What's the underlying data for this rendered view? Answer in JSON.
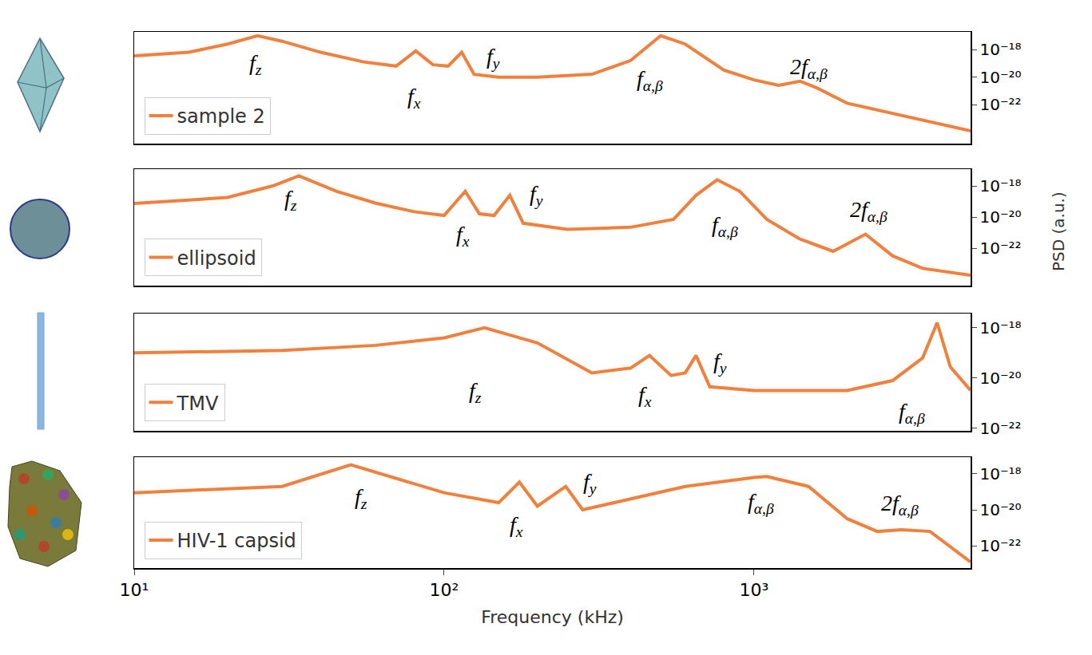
{
  "chart_data": [
    {
      "type": "line",
      "log": true,
      "grid": false,
      "legend": "lower left",
      "tick_labels": "y",
      "x": [
        10,
        15,
        20,
        25,
        30,
        40,
        55,
        70,
        81,
        92,
        103,
        114,
        125,
        150,
        200,
        300,
        400,
        500,
        600,
        700,
        800,
        1000,
        1200,
        1410,
        1600,
        2000,
        3000,
        4000,
        5000
      ],
      "series": [
        {
          "name": "sample 2",
          "color": "#f0803c",
          "values": [
            3.5e-19,
            6.3e-19,
            2.5e-18,
            1e-17,
            4e-18,
            6.3e-19,
            1.26e-19,
            6.3e-20,
            7.9e-19,
            7.9e-20,
            6.3e-20,
            6.3e-19,
            1.6e-20,
            1e-20,
            1e-20,
            1.6e-20,
            1.6e-19,
            1e-17,
            2.5e-18,
            2.5e-19,
            3.2e-20,
            6.3e-21,
            2.5e-21,
            5e-21,
            1.6e-21,
            1.26e-22,
            1.6e-23,
            4e-24,
            1.26e-24
          ]
        }
      ],
      "xlim": [
        10,
        5000
      ],
      "xticks": [
        {
          "value": 10,
          "label": "10¹"
        },
        {
          "value": 100,
          "label": "10²"
        },
        {
          "value": 1000,
          "label": "10³"
        }
      ],
      "ylim": [
        1.5e-25,
        1.9e-17
      ],
      "yticks": [
        {
          "value": 1e-18,
          "label": "10⁻¹⁸"
        },
        {
          "value": 1e-20,
          "label": "10⁻²⁰"
        },
        {
          "value": 1e-22,
          "label": "10⁻²²"
        }
      ],
      "annotations": [
        {
          "text": "f",
          "sub": "z",
          "x": 24.6,
          "y": 9e-20
        },
        {
          "text": "f",
          "sub": "x",
          "x": 80,
          "y": 3.4e-22
        },
        {
          "text": "f",
          "sub": "y",
          "x": 144,
          "y": 2.6e-19
        },
        {
          "text": "f",
          "sub": "α,β",
          "x": 460,
          "y": 6.3e-21
        },
        {
          "text": "2f",
          "sub": "α,β",
          "x": 1500,
          "y": 4.7e-20
        }
      ]
    },
    {
      "type": "line",
      "log": true,
      "grid": false,
      "legend": "lower left",
      "tick_labels": "y",
      "x": [
        10,
        20,
        28,
        34,
        45,
        60,
        80,
        100,
        117,
        130,
        145,
        163,
        180,
        250,
        400,
        550,
        650,
        760,
        900,
        1100,
        1400,
        1800,
        2290,
        2800,
        3500,
        5000
      ],
      "series": [
        {
          "name": "ellipsoid",
          "color": "#f0803c",
          "values": [
            7.4e-20,
            1.8e-19,
            1e-18,
            4.5e-18,
            4.5e-19,
            7.9e-20,
            2.2e-20,
            1.26e-20,
            4.5e-19,
            1.6e-20,
            1.26e-20,
            2.5e-19,
            4e-21,
            1.6e-21,
            2.2e-21,
            7.1e-21,
            2.5e-19,
            2.5e-18,
            4.5e-19,
            7.1e-21,
            4e-22,
            6.3e-23,
            7.9e-22,
            3.2e-23,
            5e-24,
            1.8e-24
          ]
        }
      ],
      "xlim": [
        10,
        5000
      ],
      "xticks": [
        {
          "value": 10,
          "label": "10¹"
        },
        {
          "value": 100,
          "label": "10²"
        },
        {
          "value": 1000,
          "label": "10³"
        }
      ],
      "ylim": [
        3.9e-25,
        1.2e-17
      ],
      "yticks": [
        {
          "value": 1e-18,
          "label": "10⁻¹⁸"
        },
        {
          "value": 1e-20,
          "label": "10⁻²⁰"
        },
        {
          "value": 1e-22,
          "label": "10⁻²²"
        }
      ],
      "annotations": [
        {
          "text": "f",
          "sub": "z",
          "x": 32,
          "y": 1.3e-19
        },
        {
          "text": "f",
          "sub": "x",
          "x": 115,
          "y": 6.6e-22
        },
        {
          "text": "f",
          "sub": "y",
          "x": 198,
          "y": 2.5e-19
        },
        {
          "text": "f",
          "sub": "α,β",
          "x": 807,
          "y": 2.7e-21
        },
        {
          "text": "2f",
          "sub": "α,β",
          "x": 2350,
          "y": 2.3e-20
        }
      ]
    },
    {
      "type": "line",
      "log": true,
      "grid": false,
      "legend": "lower left",
      "tick_labels": "y",
      "x": [
        10,
        30,
        60,
        100,
        135,
        200,
        300,
        400,
        460,
        540,
        600,
        650,
        720,
        1000,
        2000,
        2800,
        3500,
        3900,
        4300,
        5000
      ],
      "series": [
        {
          "name": "TMV",
          "color": "#f0803c",
          "values": [
            1e-19,
            1.26e-19,
            2e-19,
            4e-19,
            1e-18,
            2.5e-19,
            1.6e-20,
            2.5e-20,
            7.9e-20,
            1.26e-20,
            1.6e-20,
            7.9e-20,
            4.5e-21,
            3.2e-21,
            3.2e-21,
            7.9e-21,
            6.3e-20,
            1.6e-18,
            2.8e-20,
            3.2e-21
          ]
        }
      ],
      "xlim": [
        10,
        5000
      ],
      "xticks": [
        {
          "value": 10,
          "label": "10¹"
        },
        {
          "value": 100,
          "label": "10²"
        },
        {
          "value": 1000,
          "label": "10³"
        }
      ],
      "ylim": [
        7.9e-23,
        3.7e-18
      ],
      "yticks": [
        {
          "value": 1e-18,
          "label": "10⁻¹⁸"
        },
        {
          "value": 1e-20,
          "label": "10⁻²⁰"
        },
        {
          "value": 1e-22,
          "label": "10⁻²²"
        }
      ],
      "annotations": [
        {
          "text": "f",
          "sub": "z",
          "x": 126,
          "y": 2.7e-21
        },
        {
          "text": "f",
          "sub": "x",
          "x": 446,
          "y": 1.9e-21
        },
        {
          "text": "f",
          "sub": "y",
          "x": 777,
          "y": 4e-20
        },
        {
          "text": "f",
          "sub": "α,β",
          "x": 3240,
          "y": 4e-22
        }
      ]
    },
    {
      "type": "line",
      "log": true,
      "grid": false,
      "legend": "lower left",
      "x_label": "Frequency (kHz)",
      "y_label": "PSD (a.u.)",
      "x": [
        10,
        30,
        50,
        70,
        100,
        150,
        175,
        200,
        247,
        280,
        400,
        600,
        1000,
        1100,
        1500,
        2000,
        2500,
        3000,
        3700,
        4300,
        5000
      ],
      "series": [
        {
          "name": "HIV-1 capsid",
          "color": "#f0803c",
          "values": [
            8.9e-20,
            2e-19,
            3.2e-18,
            5.6e-19,
            8.9e-20,
            2.5e-20,
            3.5e-19,
            1.6e-20,
            2e-19,
            1e-20,
            4e-20,
            2e-19,
            6.3e-19,
            7.1e-19,
            2e-19,
            3.2e-21,
            6.3e-22,
            7.9e-22,
            6.3e-22,
            8.9e-23,
            1.26e-23
          ]
        }
      ],
      "xlim": [
        10,
        5000
      ],
      "xticks": [
        {
          "value": 10,
          "label": "10¹"
        },
        {
          "value": 100,
          "label": "10²"
        },
        {
          "value": 1000,
          "label": "10³"
        }
      ],
      "ylim": [
        5.8e-24,
        8.5e-18
      ],
      "yticks": [
        {
          "value": 1e-18,
          "label": "10⁻¹⁸"
        },
        {
          "value": 1e-20,
          "label": "10⁻²⁰"
        },
        {
          "value": 1e-22,
          "label": "10⁻²²"
        }
      ],
      "annotations": [
        {
          "text": "f",
          "sub": "z",
          "x": 54,
          "y": 4.2e-20
        },
        {
          "text": "f",
          "sub": "x",
          "x": 171,
          "y": 1.2e-21
        },
        {
          "text": "f",
          "sub": "y",
          "x": 295,
          "y": 3.2e-19
        },
        {
          "text": "f",
          "sub": "α,β",
          "x": 1050,
          "y": 2.5e-20
        },
        {
          "text": "2f",
          "sub": "α,β",
          "x": 2950,
          "y": 2e-20
        }
      ]
    }
  ]
}
